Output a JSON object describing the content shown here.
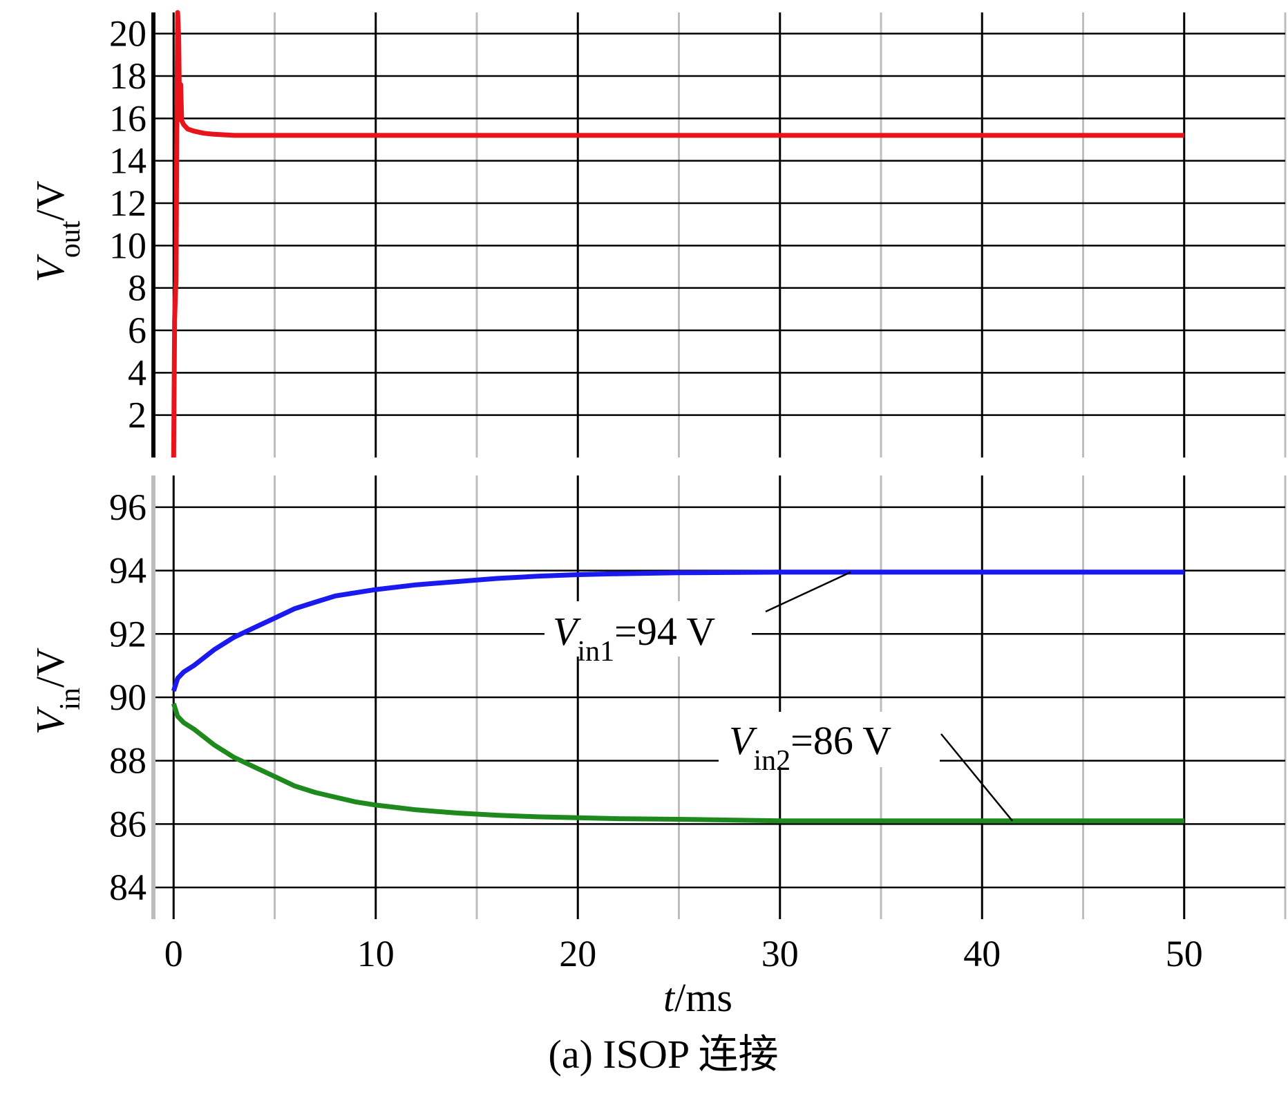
{
  "caption": "(a) ISOP 连接",
  "chart_data": [
    {
      "type": "line",
      "panel": "top",
      "ylabel": {
        "main": "V",
        "sub": "out",
        "unit": "/V"
      },
      "xlim": [
        -1,
        55
      ],
      "ylim": [
        0,
        21
      ],
      "yticks": [
        2,
        4,
        6,
        8,
        10,
        12,
        14,
        16,
        18,
        20
      ],
      "grid": true,
      "series": [
        {
          "color": "#e8141c",
          "x": [
            0.0,
            0.05,
            0.1,
            0.12,
            0.15,
            0.2,
            0.25,
            0.3,
            0.35,
            0.4,
            0.5,
            0.7,
            1.0,
            1.5,
            2.0,
            3.0,
            50.0
          ],
          "y": [
            0,
            6.5,
            8.0,
            8.3,
            14.0,
            21.0,
            19.8,
            16.0,
            17.6,
            15.9,
            15.7,
            15.5,
            15.4,
            15.3,
            15.25,
            15.2,
            15.2
          ]
        }
      ]
    },
    {
      "type": "line",
      "panel": "bottom",
      "ylabel": {
        "main": "V",
        "sub": "in",
        "unit": "/V"
      },
      "xlabel": {
        "main": "t",
        "unit": "/ms"
      },
      "xlim": [
        -1,
        55
      ],
      "ylim": [
        83,
        97
      ],
      "xticks": [
        0,
        10,
        20,
        30,
        40,
        50
      ],
      "yticks": [
        84,
        86,
        88,
        90,
        92,
        94,
        96
      ],
      "grid": true,
      "series": [
        {
          "color": "#1a1aee",
          "x": [
            0.0,
            0.2,
            0.5,
            1,
            2,
            3,
            4,
            5,
            6,
            7,
            8,
            9,
            10,
            12,
            14,
            16,
            18,
            20,
            22,
            25,
            30,
            40,
            50
          ],
          "y": [
            90.2,
            90.6,
            90.8,
            91.0,
            91.5,
            91.9,
            92.2,
            92.5,
            92.8,
            93.0,
            93.2,
            93.3,
            93.4,
            93.55,
            93.65,
            93.75,
            93.82,
            93.87,
            93.9,
            93.93,
            93.95,
            93.95,
            93.95
          ]
        },
        {
          "color": "#1e8a1e",
          "x": [
            0.0,
            0.2,
            0.5,
            1,
            2,
            3,
            4,
            5,
            6,
            7,
            8,
            9,
            10,
            12,
            14,
            16,
            18,
            20,
            22,
            25,
            30,
            40,
            50
          ],
          "y": [
            89.8,
            89.4,
            89.2,
            89.0,
            88.5,
            88.1,
            87.8,
            87.5,
            87.2,
            87.0,
            86.85,
            86.7,
            86.6,
            86.45,
            86.35,
            86.28,
            86.23,
            86.2,
            86.17,
            86.15,
            86.1,
            86.1,
            86.1
          ]
        }
      ],
      "annotations": [
        {
          "main": "V",
          "sub": "in1",
          "text": "=94 V",
          "target_x": 33.5,
          "target_y": 93.95
        },
        {
          "main": "V",
          "sub": "in2",
          "text": "=86 V",
          "target_x": 41.5,
          "target_y": 86.1
        }
      ]
    }
  ]
}
